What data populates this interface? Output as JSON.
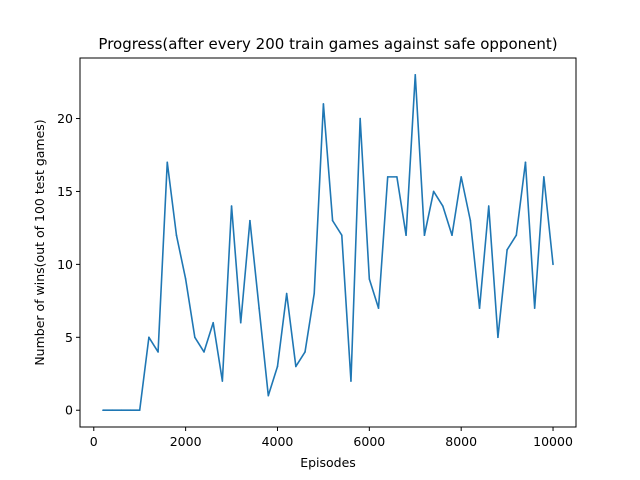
{
  "chart_data": {
    "type": "line",
    "title": "Progress(after every 200 train games against safe opponent)",
    "xlabel": "Episodes",
    "ylabel": "Number of wins(out of 100 test games)",
    "xlim": [
      -300,
      10500
    ],
    "ylim": [
      -1.15,
      24.15
    ],
    "x_ticks": [
      0,
      2000,
      4000,
      6000,
      8000,
      10000
    ],
    "y_ticks": [
      0,
      5,
      10,
      15,
      20
    ],
    "grid": false,
    "legend": "none",
    "series": [
      {
        "color": "#1f77b4",
        "x": [
          200,
          400,
          600,
          800,
          1000,
          1200,
          1400,
          1600,
          1800,
          2000,
          2200,
          2400,
          2600,
          2800,
          3000,
          3200,
          3400,
          3600,
          3800,
          4000,
          4200,
          4400,
          4600,
          4800,
          5000,
          5200,
          5400,
          5600,
          5800,
          6000,
          6200,
          6400,
          6600,
          6800,
          7000,
          7200,
          7400,
          7600,
          7800,
          8000,
          8200,
          8400,
          8600,
          8800,
          9000,
          9200,
          9400,
          9600,
          9800,
          10000
        ],
        "values": [
          0,
          0,
          0,
          0,
          0,
          5,
          4,
          17,
          12,
          9,
          5,
          4,
          6,
          2,
          14,
          6,
          13,
          7,
          1,
          3,
          8,
          3,
          4,
          8,
          21,
          13,
          12,
          2,
          20,
          9,
          7,
          16,
          16,
          12,
          23,
          12,
          15,
          14,
          12,
          16,
          13,
          7,
          14,
          5,
          11,
          12,
          17,
          7,
          16,
          10
        ]
      }
    ]
  }
}
